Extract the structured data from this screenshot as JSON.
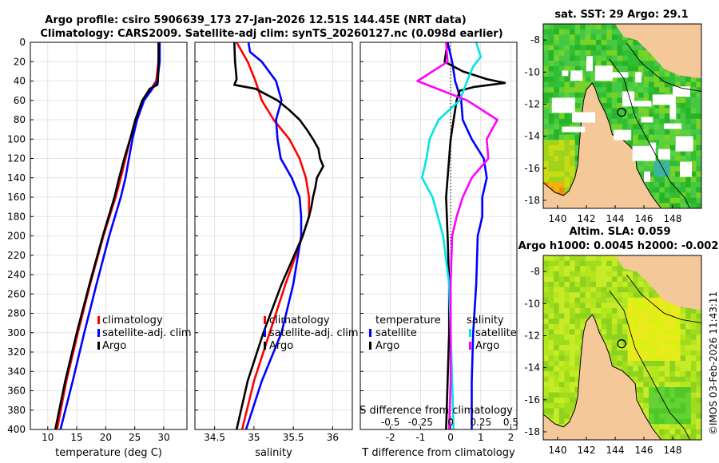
{
  "figure": {
    "title_line1": "Argo profile: csiro 5906639_173 27-Jan-2026 12.51S 144.45E (NRT data)",
    "title_line2": "Climatology: CARS2009. Satellite-adj clim: synTS_20260127.nc (0.098d earlier)",
    "credit": "©IMOS 03-Feb-2026 11:43:11",
    "colors": {
      "climatology": "#ff0000",
      "satellite": "#0000ff",
      "argo": "#000000",
      "s_sat": "#00e5e5",
      "s_arg": "#ff00ff",
      "land": "#f5c89a",
      "missing": "#ffffff"
    }
  },
  "chart_data": [
    {
      "type": "line",
      "id": "temperature",
      "xlabel": "temperature (deg C)",
      "ylabel": "",
      "xlim": [
        7,
        34
      ],
      "ylim": [
        400,
        0
      ],
      "xticks": [
        10,
        15,
        20,
        25,
        30
      ],
      "yticks": [
        0,
        20,
        40,
        60,
        80,
        100,
        120,
        140,
        160,
        180,
        200,
        220,
        240,
        260,
        280,
        300,
        320,
        340,
        360,
        380,
        400
      ],
      "grid": true,
      "legend": [
        "climatology",
        "satellite-adj. clim",
        "Argo"
      ],
      "series": [
        {
          "name": "climatology",
          "color": "#ff0000",
          "depth": [
            0,
            20,
            40,
            50,
            60,
            80,
            100,
            120,
            140,
            160,
            200,
            250,
            300,
            350,
            400
          ],
          "values": [
            29.2,
            29.1,
            28.7,
            27.6,
            26.4,
            25.3,
            24.2,
            23.4,
            22.6,
            21.7,
            19.6,
            17.3,
            15.2,
            13.2,
            11.6
          ]
        },
        {
          "name": "satellite-adj. clim",
          "color": "#0000ff",
          "depth": [
            0,
            20,
            40,
            50,
            60,
            80,
            100,
            120,
            140,
            160,
            200,
            250,
            300,
            350,
            400
          ],
          "values": [
            29.3,
            29.3,
            28.9,
            27.8,
            26.6,
            25.4,
            24.6,
            24.0,
            23.4,
            22.6,
            20.6,
            18.4,
            16.3,
            14.3,
            12.2
          ]
        },
        {
          "name": "Argo",
          "color": "#000000",
          "depth": [
            0,
            20,
            40,
            44,
            48,
            60,
            80,
            100,
            120,
            140,
            160,
            200,
            250,
            300,
            350,
            400
          ],
          "values": [
            29.1,
            29.1,
            29.0,
            28.9,
            27.6,
            26.3,
            25.1,
            24.2,
            23.2,
            22.3,
            21.5,
            19.5,
            17.2,
            15.0,
            13.0,
            11.3
          ]
        }
      ]
    },
    {
      "type": "line",
      "id": "salinity",
      "xlabel": "salinity",
      "ylabel": "",
      "xlim": [
        34.25,
        36.25
      ],
      "ylim": [
        400,
        0
      ],
      "xticks": [
        34.5,
        35,
        35.5,
        36
      ],
      "xticklabels": [
        "34.5",
        "35",
        "35.5",
        "36"
      ],
      "grid": true,
      "legend": [
        "climatology",
        "satellite-adj. clim",
        "Argo"
      ],
      "series": [
        {
          "name": "climatology",
          "color": "#ff0000",
          "depth": [
            0,
            20,
            40,
            60,
            80,
            100,
            120,
            140,
            160,
            180,
            200,
            250,
            300,
            350,
            400
          ],
          "values": [
            34.78,
            34.92,
            35.02,
            35.1,
            35.25,
            35.45,
            35.58,
            35.66,
            35.7,
            35.7,
            35.62,
            35.4,
            35.2,
            35.0,
            34.85
          ]
        },
        {
          "name": "satellite-adj. clim",
          "color": "#0000ff",
          "depth": [
            0,
            10,
            20,
            40,
            60,
            80,
            100,
            120,
            140,
            160,
            180,
            200,
            250,
            300,
            350,
            400
          ],
          "values": [
            34.93,
            34.95,
            35.1,
            35.28,
            35.35,
            35.28,
            35.3,
            35.34,
            35.48,
            35.58,
            35.6,
            35.6,
            35.5,
            35.35,
            35.1,
            34.9
          ]
        },
        {
          "name": "Argo",
          "color": "#000000",
          "depth": [
            0,
            20,
            38,
            44,
            48,
            60,
            70,
            80,
            90,
            100,
            110,
            120,
            128,
            140,
            150,
            160,
            170,
            180,
            190,
            200,
            250,
            300,
            350,
            400
          ],
          "values": [
            34.75,
            34.76,
            34.78,
            34.75,
            35.02,
            35.3,
            35.45,
            35.58,
            35.67,
            35.75,
            35.82,
            35.84,
            35.88,
            35.8,
            35.78,
            35.75,
            35.73,
            35.7,
            35.66,
            35.62,
            35.35,
            35.12,
            34.92,
            34.78
          ]
        }
      ]
    },
    {
      "type": "line",
      "id": "difference",
      "xlabel": "T difference from climatology",
      "xlabel_top": "S difference from climatology",
      "xlim": [
        -3,
        2.2
      ],
      "ylim": [
        400,
        0
      ],
      "xticks": [
        -2,
        -1,
        0,
        1,
        2
      ],
      "xticks_s": [
        "-0.5",
        "-0.25",
        "0",
        "0.25",
        "0.5"
      ],
      "xticks_s_values": [
        -2,
        -1,
        0,
        1,
        2
      ],
      "grid": true,
      "legend_t_title": "temperature",
      "legend_s_title": "salinity",
      "legend": [
        "satellite",
        "Argo",
        "satellite",
        "Argo"
      ],
      "series": [
        {
          "name": "T satellite",
          "color": "#0000ff",
          "depth": [
            0,
            20,
            40,
            60,
            80,
            100,
            120,
            140,
            160,
            180,
            200,
            250,
            300,
            350,
            400
          ],
          "values": [
            -0.1,
            0.05,
            0.15,
            0.35,
            0.4,
            0.7,
            1.1,
            1.2,
            1.05,
            1.05,
            0.9,
            0.85,
            0.75,
            0.7,
            0.7
          ]
        },
        {
          "name": "T Argo",
          "color": "#000000",
          "depth": [
            0,
            20,
            30,
            38,
            42,
            46,
            50,
            60,
            80,
            100,
            120,
            140,
            160,
            200,
            250,
            300,
            350,
            400
          ],
          "values": [
            -0.1,
            -0.2,
            0.4,
            1.2,
            1.8,
            0.8,
            0.3,
            0.2,
            0.1,
            0.0,
            -0.05,
            -0.1,
            -0.15,
            -0.1,
            -0.05,
            -0.05,
            -0.1,
            -0.15
          ]
        },
        {
          "name": "S satellite",
          "color": "#00e5e5",
          "depth": [
            0,
            15,
            25,
            40,
            60,
            80,
            100,
            120,
            140,
            160,
            200,
            250,
            300,
            350,
            400
          ],
          "values": [
            0.85,
            1.0,
            0.75,
            0.55,
            0.3,
            -0.4,
            -0.7,
            -0.8,
            -0.95,
            -0.6,
            -0.25,
            -0.05,
            0.0,
            0.05,
            0.1
          ]
        },
        {
          "name": "S Argo",
          "color": "#ff00ff",
          "depth": [
            0,
            20,
            40,
            60,
            80,
            100,
            120,
            140,
            160,
            180,
            200,
            250,
            300,
            350,
            400
          ],
          "values": [
            -0.15,
            -0.1,
            -1.1,
            0.55,
            1.55,
            1.2,
            1.25,
            0.7,
            0.4,
            0.2,
            0.05,
            0.0,
            0.0,
            0.0,
            -0.05
          ]
        }
      ]
    },
    {
      "type": "heatmap",
      "id": "sst_map",
      "title": "sat. SST: 29  Argo: 29.1",
      "xlim": [
        139,
        150
      ],
      "ylim": [
        -18.5,
        -7
      ],
      "xticks": [
        140,
        142,
        144,
        146,
        148
      ],
      "yticks": [
        -8,
        -10,
        -12,
        -14,
        -16,
        -18
      ],
      "float_position": {
        "lon": 144.45,
        "lat": -12.51
      }
    },
    {
      "type": "heatmap",
      "id": "sla_map",
      "title": "Altim. SLA: 0.059",
      "subtitle": "Argo h1000: 0.0045  h2000: -0.002",
      "xlim": [
        139,
        150
      ],
      "ylim": [
        -18.5,
        -7
      ],
      "xticks": [
        140,
        142,
        144,
        146,
        148
      ],
      "yticks": [
        -8,
        -10,
        -12,
        -14,
        -16,
        -18
      ],
      "float_position": {
        "lon": 144.45,
        "lat": -12.51
      }
    }
  ]
}
